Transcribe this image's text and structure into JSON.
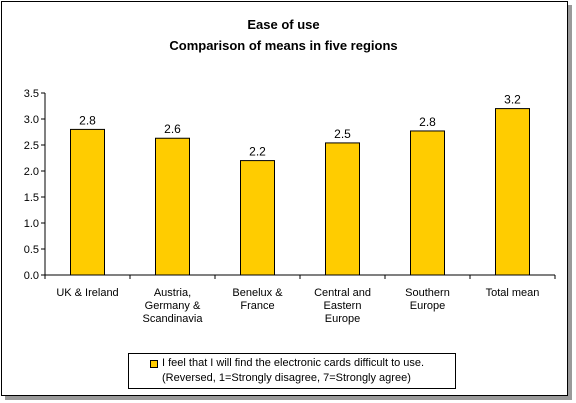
{
  "chart_data": {
    "type": "bar",
    "title": "Ease of use",
    "subtitle": "Comparison of means in five regions",
    "categories": [
      [
        "UK & Ireland"
      ],
      [
        "Austria,",
        "Germany &",
        "Scandinavia"
      ],
      [
        "Benelux &",
        "France"
      ],
      [
        "Central and",
        "Eastern",
        "Europe"
      ],
      [
        "Southern",
        "Europe"
      ],
      [
        "Total mean"
      ]
    ],
    "values": [
      2.8,
      2.63,
      2.2,
      2.54,
      2.77,
      3.2
    ],
    "data_labels": [
      "2.8",
      "2.6",
      "2.2",
      "2.5",
      "2.8",
      "3.2"
    ],
    "y_ticks": [
      "0.0",
      "0.5",
      "1.0",
      "1.5",
      "2.0",
      "2.5",
      "3.0",
      "3.5"
    ],
    "ylim": [
      0,
      3.5
    ],
    "bar_color": "#ffcc00",
    "grid": false,
    "legend": {
      "placement": "bottom",
      "line1": "I feel that I will find the electronic cards difficult to use.",
      "line2": "(Reversed, 1=Strongly disagree, 7=Strongly agree)"
    }
  }
}
